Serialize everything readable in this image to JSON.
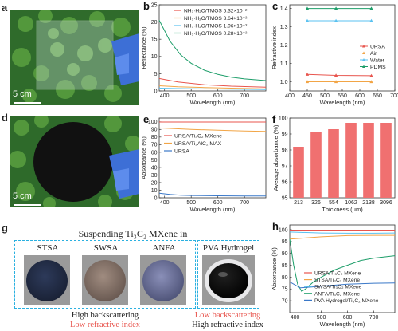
{
  "colors": {
    "red": "#e8554e",
    "orange": "#f2a546",
    "skyblue": "#59c1f0",
    "green": "#1e9e6a",
    "blue": "#3a78c8",
    "pink": "#f07070",
    "dash_blue": "#2ab0e0"
  },
  "panels": {
    "a": {
      "label": "a",
      "scale": "5 cm"
    },
    "d": {
      "label": "d",
      "scale": "5 cm"
    },
    "g": {
      "label": "g",
      "title": "Suspending Ti₃C₂ MXene in",
      "samples": [
        "STSA",
        "SWSA",
        "ANFA",
        "PVA Hydrogel"
      ],
      "left_line1": "High backscattering",
      "left_line2": "Low refractive index",
      "right_line1": "Low backscattering",
      "right_line2": "High refractive index"
    }
  },
  "chart_data": [
    {
      "panel": "b",
      "type": "line",
      "xlabel": "Wavelength (nm)",
      "ylabel": "Reflectance (%)",
      "xlim": [
        380,
        780
      ],
      "ylim": [
        0,
        25
      ],
      "xticks": [
        400,
        500,
        600,
        700
      ],
      "yticks": [
        0,
        5,
        10,
        15,
        20,
        25
      ],
      "legend": "top-right",
      "series": [
        {
          "name": "NH₃·H₂O/TMOS 5.32×10⁻²",
          "color": "#e8554e",
          "x": [
            380,
            450,
            550,
            650,
            780
          ],
          "values": [
            3.6,
            2.6,
            1.8,
            1.4,
            1.1
          ]
        },
        {
          "name": "NH₃·H₂O/TMOS 3.64×10⁻²",
          "color": "#f2a546",
          "x": [
            380,
            450,
            550,
            650,
            780
          ],
          "values": [
            1.5,
            1.2,
            1.0,
            0.8,
            0.6
          ]
        },
        {
          "name": "NH₃·H₂O/TMOS 1.96×10⁻²",
          "color": "#59c1f0",
          "x": [
            380,
            450,
            550,
            650,
            780
          ],
          "values": [
            0.8,
            0.7,
            0.6,
            0.5,
            0.4
          ]
        },
        {
          "name": "NH₃·H₂O/TMOS 0.28×10⁻²",
          "color": "#1e9e6a",
          "x": [
            380,
            420,
            460,
            500,
            550,
            600,
            650,
            700,
            780
          ],
          "values": [
            20.5,
            14.5,
            10.5,
            8.0,
            6.0,
            4.8,
            4.0,
            3.5,
            3.0
          ]
        }
      ]
    },
    {
      "panel": "c",
      "type": "line",
      "xlabel": "Wavelength (nm)",
      "ylabel": "Refractive index",
      "xlim": [
        400,
        700
      ],
      "ylim": [
        0.95,
        1.42
      ],
      "xticks": [
        400,
        450,
        500,
        550,
        600,
        650,
        700
      ],
      "yticks": [
        1.0,
        1.1,
        1.2,
        1.3,
        1.4
      ],
      "legend": "right",
      "series": [
        {
          "name": "URSA",
          "color": "#e8554e",
          "x": [
            450,
            532,
            633
          ],
          "values": [
            1.04,
            1.035,
            1.033
          ]
        },
        {
          "name": "Air",
          "color": "#f2a546",
          "x": [
            450,
            532,
            633
          ],
          "values": [
            1.0,
            1.0,
            1.0
          ]
        },
        {
          "name": "Water",
          "color": "#59c1f0",
          "x": [
            450,
            532,
            633
          ],
          "values": [
            1.333,
            1.333,
            1.333
          ]
        },
        {
          "name": "PDMS",
          "color": "#1e9e6a",
          "x": [
            450,
            532,
            633
          ],
          "values": [
            1.4,
            1.4,
            1.4
          ]
        }
      ]
    },
    {
      "panel": "e",
      "type": "line",
      "xlabel": "Wavelength (nm)",
      "ylabel": "Absorbance (%)",
      "xlim": [
        380,
        780
      ],
      "ylim": [
        0,
        105
      ],
      "xticks": [
        400,
        500,
        600,
        700
      ],
      "yticks": [
        0,
        10,
        20,
        30,
        40,
        50,
        60,
        70,
        80,
        90,
        100
      ],
      "legend": "upper-left",
      "series": [
        {
          "name": "URSA/Ti₃C₂ MXene",
          "color": "#e8554e",
          "x": [
            380,
            500,
            600,
            700,
            780
          ],
          "values": [
            99.8,
            99.8,
            99.8,
            99.8,
            99.8
          ]
        },
        {
          "name": "URSA/Ti₃AlC₂ MAX",
          "color": "#f2a546",
          "x": [
            380,
            500,
            600,
            700,
            780
          ],
          "values": [
            92,
            90,
            89,
            88,
            87.5
          ]
        },
        {
          "name": "URSA",
          "color": "#3a78c8",
          "x": [
            380,
            420,
            460,
            500,
            600,
            700,
            780
          ],
          "values": [
            6,
            4.5,
            3.5,
            3,
            2.6,
            2.4,
            2.3
          ]
        }
      ]
    },
    {
      "panel": "f",
      "type": "bar",
      "xlabel": "Thickness (μm)",
      "ylabel": "Average absorbance (%)",
      "ylim": [
        95,
        100
      ],
      "yticks": [
        95,
        96,
        97,
        98,
        99,
        100
      ],
      "categories": [
        "213",
        "326",
        "554",
        "1062",
        "2138",
        "3096"
      ],
      "values": [
        98.2,
        99.1,
        99.3,
        99.7,
        99.7,
        99.7
      ],
      "color": "#f07070"
    },
    {
      "panel": "h",
      "type": "line",
      "xlabel": "Wavelength (nm)",
      "ylabel": "Absorbance (%)",
      "xlim": [
        380,
        780
      ],
      "ylim": [
        65,
        102
      ],
      "xticks": [
        400,
        500,
        600,
        700
      ],
      "yticks": [
        70,
        75,
        80,
        85,
        90,
        95,
        100
      ],
      "legend": "bottom",
      "series": [
        {
          "name": "URSA/Ti₃C₂ MXene",
          "color": "#e8554e",
          "x": [
            380,
            500,
            600,
            700,
            780
          ],
          "values": [
            99.8,
            99.8,
            99.8,
            99.8,
            99.8
          ]
        },
        {
          "name": "STSA/Ti₃C₂ MXene",
          "color": "#f2a546",
          "x": [
            380,
            500,
            600,
            700,
            780
          ],
          "values": [
            96,
            97,
            97.5,
            97.6,
            97.6
          ]
        },
        {
          "name": "SWSA/Ti₃C₂ MXene",
          "color": "#59c1f0",
          "x": [
            380,
            500,
            600,
            700,
            780
          ],
          "values": [
            99.0,
            98.6,
            98.5,
            98.5,
            98.6
          ]
        },
        {
          "name": "ANFA/Ti₃C₂ MXene",
          "color": "#1e9e6a",
          "x": [
            380,
            395,
            410,
            425,
            440,
            470,
            500,
            550,
            600,
            650,
            700,
            780
          ],
          "values": [
            96,
            85,
            77,
            74,
            75,
            78,
            80,
            83,
            85,
            87,
            88,
            89
          ]
        },
        {
          "name": "PVA Hydrogel/Ti₃C₂ MXene",
          "color": "#3a78c8",
          "x": [
            380,
            420,
            460,
            500,
            600,
            700,
            780
          ],
          "values": [
            78,
            75.5,
            75.8,
            76.2,
            77,
            77.4,
            77.5
          ]
        }
      ]
    }
  ]
}
